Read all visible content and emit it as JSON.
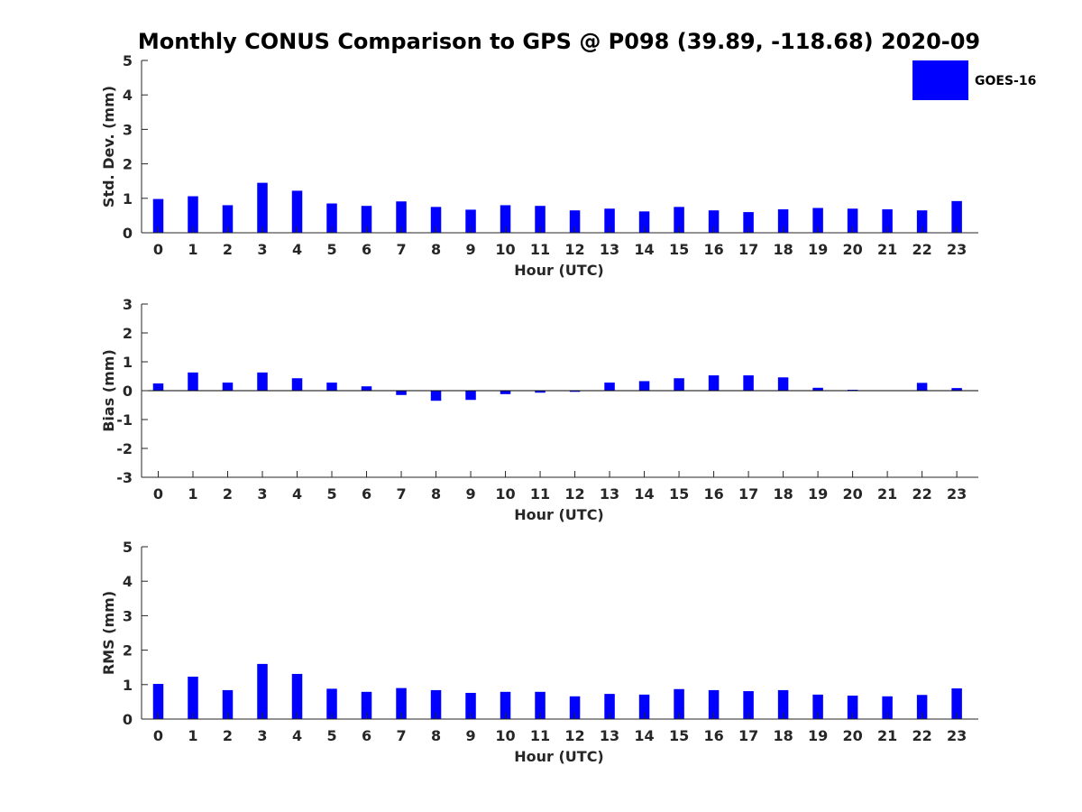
{
  "title": "Monthly CONUS Comparison to GPS @ P098 (39.89, -118.68) 2020-09",
  "legend": {
    "label": "GOES-16",
    "color": "#0000ff",
    "placement": "top-right"
  },
  "chart_data": [
    {
      "type": "bar",
      "xlabel": "Hour (UTC)",
      "ylabel": "Std. Dev. (mm)",
      "ylim": [
        0,
        5
      ],
      "yticks": [
        0,
        1,
        2,
        3,
        4,
        5
      ],
      "grid": false,
      "categories": [
        "0",
        "1",
        "2",
        "3",
        "4",
        "5",
        "6",
        "7",
        "8",
        "9",
        "10",
        "11",
        "12",
        "13",
        "14",
        "15",
        "16",
        "17",
        "18",
        "19",
        "20",
        "21",
        "22",
        "23"
      ],
      "series": [
        {
          "name": "GOES-16",
          "color": "#0000ff",
          "values": [
            0.98,
            1.06,
            0.8,
            1.45,
            1.22,
            0.85,
            0.78,
            0.91,
            0.75,
            0.67,
            0.8,
            0.78,
            0.65,
            0.7,
            0.62,
            0.75,
            0.65,
            0.6,
            0.68,
            0.72,
            0.7,
            0.68,
            0.65,
            0.92
          ]
        }
      ]
    },
    {
      "type": "bar",
      "xlabel": "Hour (UTC)",
      "ylabel": "Bias (mm)",
      "ylim": [
        -3,
        3
      ],
      "yticks": [
        -3,
        -2,
        -1,
        0,
        1,
        2,
        3
      ],
      "grid": false,
      "categories": [
        "0",
        "1",
        "2",
        "3",
        "4",
        "5",
        "6",
        "7",
        "8",
        "9",
        "10",
        "11",
        "12",
        "13",
        "14",
        "15",
        "16",
        "17",
        "18",
        "19",
        "20",
        "21",
        "22",
        "23"
      ],
      "series": [
        {
          "name": "GOES-16",
          "color": "#0000ff",
          "values": [
            0.25,
            0.63,
            0.28,
            0.63,
            0.43,
            0.28,
            0.15,
            -0.15,
            -0.35,
            -0.32,
            -0.12,
            -0.07,
            -0.04,
            0.28,
            0.33,
            0.43,
            0.53,
            0.53,
            0.46,
            0.1,
            0.03,
            0.0,
            0.27,
            0.09
          ]
        }
      ]
    },
    {
      "type": "bar",
      "xlabel": "Hour (UTC)",
      "ylabel": "RMS (mm)",
      "ylim": [
        0,
        5
      ],
      "yticks": [
        0,
        1,
        2,
        3,
        4,
        5
      ],
      "grid": false,
      "categories": [
        "0",
        "1",
        "2",
        "3",
        "4",
        "5",
        "6",
        "7",
        "8",
        "9",
        "10",
        "11",
        "12",
        "13",
        "14",
        "15",
        "16",
        "17",
        "18",
        "19",
        "20",
        "21",
        "22",
        "23"
      ],
      "series": [
        {
          "name": "GOES-16",
          "color": "#0000ff",
          "values": [
            1.02,
            1.23,
            0.84,
            1.6,
            1.31,
            0.88,
            0.79,
            0.9,
            0.84,
            0.76,
            0.79,
            0.79,
            0.66,
            0.73,
            0.71,
            0.87,
            0.84,
            0.81,
            0.84,
            0.71,
            0.68,
            0.66,
            0.7,
            0.89
          ]
        }
      ]
    }
  ]
}
